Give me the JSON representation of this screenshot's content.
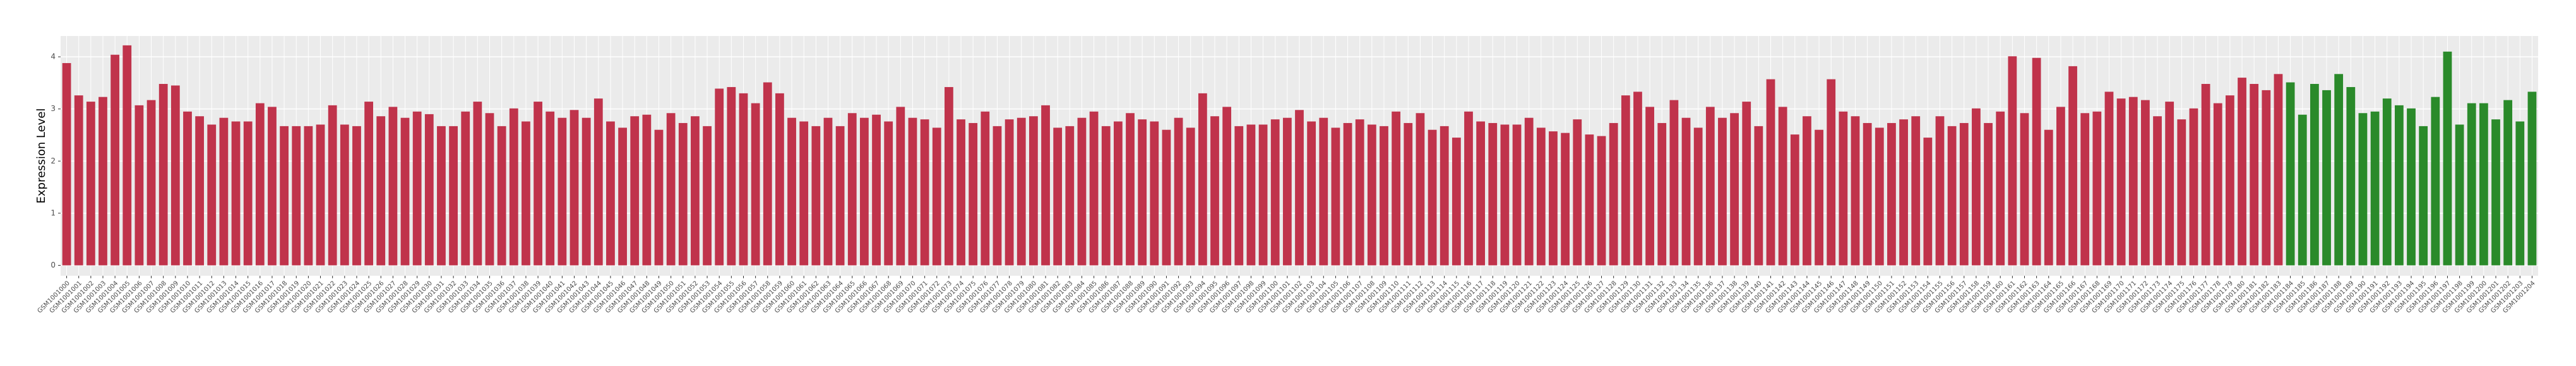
{
  "chart_data": {
    "type": "bar",
    "ylabel": "Expression Level",
    "ylim": [
      -0.2,
      4.4
    ],
    "yticks": [
      0,
      1,
      2,
      3,
      4
    ],
    "grid": true,
    "groups": [
      {
        "color": "#c0334b",
        "categories": [
          "GSM1001000",
          "GSM1001001",
          "GSM1001002",
          "GSM1001003",
          "GSM1001004",
          "GSM1001005",
          "GSM1001006",
          "GSM1001007",
          "GSM1001008",
          "GSM1001009",
          "GSM1001010",
          "GSM1001011",
          "GSM1001012",
          "GSM1001013",
          "GSM1001014",
          "GSM1001015",
          "GSM1001016",
          "GSM1001017",
          "GSM1001018",
          "GSM1001019",
          "GSM1001020",
          "GSM1001021",
          "GSM1001022",
          "GSM1001023",
          "GSM1001024",
          "GSM1001025",
          "GSM1001026",
          "GSM1001027",
          "GSM1001028",
          "GSM1001029",
          "GSM1001030",
          "GSM1001031",
          "GSM1001032",
          "GSM1001033",
          "GSM1001034",
          "GSM1001035",
          "GSM1001036",
          "GSM1001037",
          "GSM1001038",
          "GSM1001039",
          "GSM1001040",
          "GSM1001041",
          "GSM1001042",
          "GSM1001043",
          "GSM1001044",
          "GSM1001045",
          "GSM1001046",
          "GSM1001047",
          "GSM1001048",
          "GSM1001049",
          "GSM1001050",
          "GSM1001051",
          "GSM1001052",
          "GSM1001053",
          "GSM1001054",
          "GSM1001055",
          "GSM1001056",
          "GSM1001057",
          "GSM1001058",
          "GSM1001059",
          "GSM1001060",
          "GSM1001061",
          "GSM1001062",
          "GSM1001063",
          "GSM1001064",
          "GSM1001065",
          "GSM1001066",
          "GSM1001067",
          "GSM1001068",
          "GSM1001069",
          "GSM1001070",
          "GSM1001071",
          "GSM1001072",
          "GSM1001073",
          "GSM1001074",
          "GSM1001075",
          "GSM1001076",
          "GSM1001077",
          "GSM1001078",
          "GSM1001079",
          "GSM1001080",
          "GSM1001081",
          "GSM1001082",
          "GSM1001083",
          "GSM1001084",
          "GSM1001085",
          "GSM1001086",
          "GSM1001087",
          "GSM1001088",
          "GSM1001089",
          "GSM1001090",
          "GSM1001091",
          "GSM1001092",
          "GSM1001093",
          "GSM1001094",
          "GSM1001095",
          "GSM1001096",
          "GSM1001097",
          "GSM1001098",
          "GSM1001099",
          "GSM1001100",
          "GSM1001101",
          "GSM1001102",
          "GSM1001103",
          "GSM1001104",
          "GSM1001105",
          "GSM1001106",
          "GSM1001107",
          "GSM1001108",
          "GSM1001109",
          "GSM1001110",
          "GSM1001111",
          "GSM1001112",
          "GSM1001113",
          "GSM1001114",
          "GSM1001115",
          "GSM1001116",
          "GSM1001117",
          "GSM1001118",
          "GSM1001119",
          "GSM1001120",
          "GSM1001121",
          "GSM1001122",
          "GSM1001123",
          "GSM1001124",
          "GSM1001125",
          "GSM1001126",
          "GSM1001127",
          "GSM1001128",
          "GSM1001129",
          "GSM1001130",
          "GSM1001131",
          "GSM1001132",
          "GSM1001133",
          "GSM1001134",
          "GSM1001135",
          "GSM1001136",
          "GSM1001137",
          "GSM1001138",
          "GSM1001139",
          "GSM1001140",
          "GSM1001141",
          "GSM1001142",
          "GSM1001143",
          "GSM1001144",
          "GSM1001145",
          "GSM1001146",
          "GSM1001147",
          "GSM1001148",
          "GSM1001149",
          "GSM1001150",
          "GSM1001151",
          "GSM1001152",
          "GSM1001153",
          "GSM1001154",
          "GSM1001155",
          "GSM1001156",
          "GSM1001157",
          "GSM1001158",
          "GSM1001159",
          "GSM1001160",
          "GSM1001161",
          "GSM1001162",
          "GSM1001163",
          "GSM1001164",
          "GSM1001165",
          "GSM1001166",
          "GSM1001167",
          "GSM1001168",
          "GSM1001169",
          "GSM1001170",
          "GSM1001171",
          "GSM1001172",
          "GSM1001173",
          "GSM1001174",
          "GSM1001175",
          "GSM1001176",
          "GSM1001177",
          "GSM1001178",
          "GSM1001179",
          "GSM1001180",
          "GSM1001181",
          "GSM1001182",
          "GSM1001183"
        ],
        "values": [
          3.88,
          3.26,
          3.14,
          3.23,
          4.04,
          4.22,
          3.07,
          3.17,
          3.48,
          3.45,
          2.95,
          2.86,
          2.7,
          2.83,
          2.76,
          2.76,
          3.11,
          3.04,
          2.67,
          2.67,
          2.67,
          2.7,
          3.07,
          2.7,
          2.67,
          3.14,
          2.86,
          3.04,
          2.83,
          2.95,
          2.9,
          2.67,
          2.67,
          2.95,
          3.14,
          2.92,
          2.67,
          3.01,
          2.76,
          3.14,
          2.95,
          2.83,
          2.98,
          2.83,
          3.2,
          2.76,
          2.64,
          2.86,
          2.89,
          2.6,
          2.92,
          2.73,
          2.86,
          2.67,
          3.39,
          3.42,
          3.3,
          3.11,
          3.51,
          3.3,
          2.83,
          2.76,
          2.67,
          2.83,
          2.67,
          2.92,
          2.83,
          2.89,
          2.76,
          3.04,
          2.83,
          2.8,
          2.64,
          3.42,
          2.8,
          2.73,
          2.95,
          2.67,
          2.8,
          2.83,
          2.86,
          3.07,
          2.64,
          2.67,
          2.83,
          2.95,
          2.67,
          2.76,
          2.92,
          2.8,
          2.76,
          2.6,
          2.83,
          2.64,
          3.3,
          2.86,
          3.04,
          2.67,
          2.7,
          2.7,
          2.8,
          2.83,
          2.98,
          2.76,
          2.83,
          2.64,
          2.73,
          2.8,
          2.7,
          2.67,
          2.95,
          2.73,
          2.92,
          2.6,
          2.67,
          2.45,
          2.95,
          2.76,
          2.73,
          2.7,
          2.7,
          2.83,
          2.64,
          2.57,
          2.54,
          2.8,
          2.51,
          2.48,
          2.73,
          3.26,
          3.33,
          3.04,
          2.73,
          3.17,
          2.83,
          2.64,
          3.04,
          2.83,
          2.92,
          3.14,
          2.67,
          3.57,
          3.04,
          2.51,
          2.86,
          2.6,
          3.57,
          2.95,
          2.86,
          2.73,
          2.64,
          2.73,
          2.8,
          2.86,
          2.45,
          2.86,
          2.67,
          2.73,
          3.01,
          2.73,
          2.95,
          4.01,
          2.92,
          3.98,
          2.6,
          3.04,
          3.82,
          2.92,
          2.95,
          3.33,
          3.2,
          3.23,
          3.17,
          2.86,
          3.14,
          2.8,
          3.01,
          3.48,
          3.11,
          3.26,
          3.6,
          3.48,
          3.36,
          3.67
        ]
      },
      {
        "color": "#2a8a2a",
        "categories": [
          "GSM1001184",
          "GSM1001185",
          "GSM1001186",
          "GSM1001187",
          "GSM1001188",
          "GSM1001189",
          "GSM1001190",
          "GSM1001191",
          "GSM1001192",
          "GSM1001193",
          "GSM1001194",
          "GSM1001195",
          "GSM1001196",
          "GSM1001197",
          "GSM1001198",
          "GSM1001199",
          "GSM1001200",
          "GSM1001201",
          "GSM1001202",
          "GSM1001203",
          "GSM1001204"
        ],
        "values": [
          3.51,
          2.89,
          3.48,
          3.36,
          3.67,
          3.42,
          2.92,
          2.95,
          3.2,
          3.07,
          3.01,
          2.67,
          3.23,
          4.1,
          2.7,
          3.11,
          3.11,
          2.8,
          3.17,
          2.76,
          3.33
        ]
      }
    ]
  }
}
